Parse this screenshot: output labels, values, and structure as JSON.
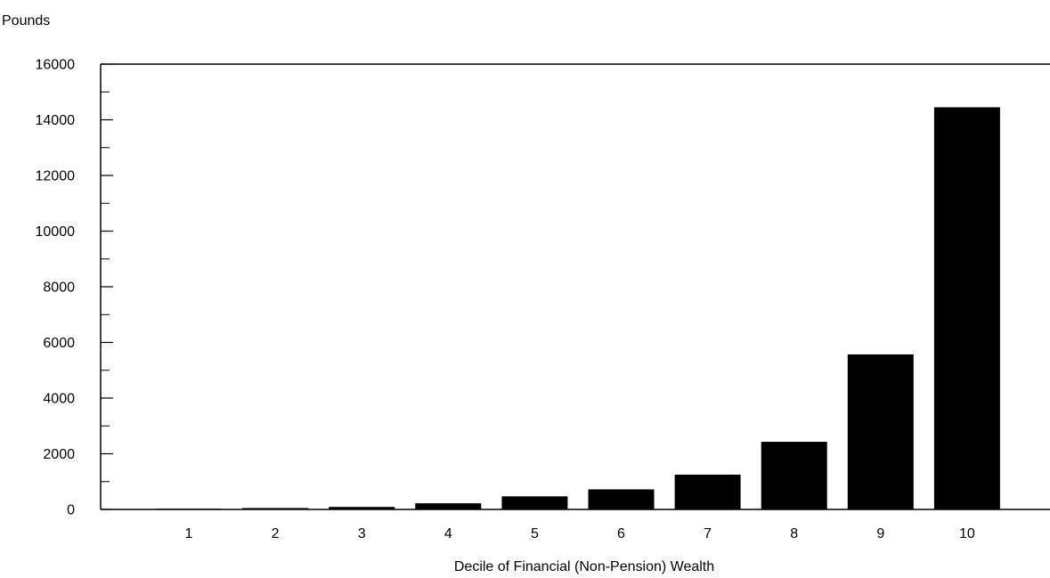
{
  "chart_data": {
    "type": "bar",
    "title": "",
    "ylabel": "Pounds",
    "xlabel": "Decile of Financial (Non-Pension) Wealth",
    "categories": [
      "1",
      "2",
      "3",
      "4",
      "5",
      "6",
      "7",
      "8",
      "9",
      "10"
    ],
    "values": [
      10,
      50,
      90,
      220,
      470,
      720,
      1250,
      2430,
      5570,
      14450
    ],
    "ylim": [
      0,
      16000
    ],
    "yticks": [
      "0",
      "2000",
      "4000",
      "6000",
      "8000",
      "10000",
      "12000",
      "14000",
      "16000"
    ],
    "grid": false,
    "bar_color": "#000000"
  }
}
